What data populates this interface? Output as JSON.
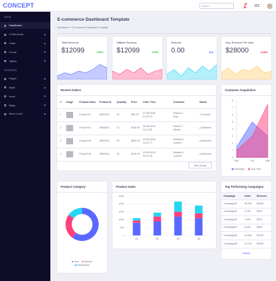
{
  "header": {
    "logo": "CONCEPT",
    "search_placeholder": "Search.."
  },
  "sidebar": {
    "sections": [
      {
        "title": "MENU",
        "items": [
          "Dashboard",
          "UI Elements",
          "Chart",
          "Forms",
          "Tables"
        ]
      },
      {
        "title": "FEATURES",
        "items": [
          "Pages",
          "Apps",
          "Icons",
          "Maps",
          "Menu Level"
        ]
      }
    ]
  },
  "page": {
    "title": "E-commerce Dashboard Template",
    "breadcrumb": [
      "Dashboard",
      "E-Commerce Dashboard Template"
    ]
  },
  "metrics": [
    {
      "label": "Total Revenue",
      "value": "$12099",
      "change": "5.86%",
      "change_color": "#2ec551",
      "type": "area",
      "color": "#5969ff",
      "ylim": [
        0,
        10
      ],
      "trend": [
        2,
        4,
        3,
        5,
        4,
        6,
        9,
        7
      ]
    },
    {
      "label": "Affiliate Revenue",
      "value": "$12099",
      "change": "5.86%",
      "change_color": "#2ec551",
      "type": "area",
      "color": "#ff407b",
      "ylim": [
        0,
        10
      ],
      "trend": [
        5,
        3,
        6,
        4,
        7,
        3,
        5,
        6
      ]
    },
    {
      "label": "Refunds",
      "value": "0.00",
      "change": "N/A",
      "change_color": "#5969ff",
      "type": "area",
      "color": "#25d5f2",
      "ylim": [
        0,
        10
      ],
      "trend": [
        3,
        6,
        2,
        7,
        4,
        8,
        5,
        9
      ]
    },
    {
      "label": "Avg. Revenue Per User",
      "value": "$28000",
      "change": "-2.00%",
      "change_color": "#ef172c",
      "type": "area",
      "color": "#ffc750",
      "ylim": [
        0,
        10
      ],
      "trend": [
        4,
        7,
        3,
        6,
        5,
        8,
        4,
        5
      ]
    }
  ],
  "recent_orders": {
    "title": "Recent Orders",
    "columns": [
      "#",
      "Image",
      "Product Name",
      "Product Id",
      "Quantity",
      "Price",
      "Order Time",
      "Customer",
      "Status"
    ],
    "rows": [
      {
        "number": 1,
        "product_name": "Product #1",
        "product_id": "id000001",
        "quantity": 20,
        "price": "$80.00",
        "order_time": "27-08-2018 01:22:12",
        "customer": "Patricia J. King",
        "status": "InTransit",
        "status_color": "#ffc750"
      },
      {
        "number": 2,
        "product_name": "Product #2",
        "product_id": "id000002",
        "quantity": 12,
        "price": "$180.00",
        "order_time": "25-08-2018 21:12:56",
        "customer": "Rachel J. Wicker",
        "status": "Delivered",
        "status_color": "#2ec551"
      },
      {
        "number": 3,
        "product_name": "Product #3",
        "product_id": "id000003",
        "quantity": 23,
        "price": "$820.00",
        "order_time": "24-08-2018 14:12:77",
        "customer": "Michael K. Ledford",
        "status": "Delivered",
        "status_color": "#2ec551"
      },
      {
        "number": 4,
        "product_name": "Product #4",
        "product_id": "id000004",
        "quantity": 34,
        "price": "$340.00",
        "order_time": "23-08-2018 09:12:35",
        "customer": "Michael K. Ledford",
        "status": "Delivered",
        "status_color": "#2ec551"
      }
    ],
    "button": "View Details"
  },
  "customer_acquisition": {
    "title": "Customer Acquisition",
    "type": "area",
    "categories": [
      "Mon",
      "Tue",
      "Wed"
    ],
    "series": [
      {
        "name": "Returning",
        "color": "#5969ff",
        "values": [
          1.5,
          5,
          3
        ]
      },
      {
        "name": "First Time",
        "color": "#ff407b",
        "values": [
          1,
          3,
          7.5
        ]
      }
    ],
    "ylim": [
      0,
      8
    ],
    "yticks": [
      0,
      1,
      2,
      3,
      4,
      5,
      6,
      7,
      8
    ]
  },
  "product_category": {
    "title": "Product Category",
    "type": "donut",
    "categories": [
      "Man",
      "Woman",
      "Accessories"
    ],
    "values": [
      60,
      25,
      15
    ],
    "colors": [
      "#5969ff",
      "#ff407b",
      "#25d5f2"
    ]
  },
  "product_sales": {
    "title": "Product Sales",
    "type": "stacked-bar",
    "categories": [
      "Q1",
      "Q2",
      "Q3",
      "Q4"
    ],
    "series": [
      {
        "color": "#5969ff",
        "values": [
          800000,
          900000,
          1200000,
          1100000
        ]
      },
      {
        "color": "#ff407b",
        "values": [
          150000,
          300000,
          300000,
          300000
        ]
      },
      {
        "color": "#25d5f2",
        "values": [
          150000,
          250000,
          650000,
          500000
        ]
      }
    ],
    "ylim": [
      0,
      2500000
    ],
    "yticks": [
      {
        "value": 0,
        "label": "0"
      },
      {
        "value": 500000,
        "label": "500k"
      },
      {
        "value": 1000000,
        "label": "1000k"
      },
      {
        "value": 1500000,
        "label": "1500k"
      },
      {
        "value": 2000000,
        "label": "2000k"
      },
      {
        "value": 2500000,
        "label": "2500k"
      }
    ],
    "grid": true
  },
  "campaigns": {
    "title": "Top Performing Campaigns",
    "columns": [
      "Campaign",
      "Visits",
      "Revenue"
    ],
    "rows": [
      [
        "Campaign#1",
        "98,789",
        "$4563"
      ],
      [
        "Campaign#2",
        "2,789",
        "$325"
      ],
      [
        "Campaign#3",
        "1,459",
        "$225"
      ],
      [
        "Campaign#4",
        "5,035",
        "$856"
      ],
      [
        "Campaign#5",
        "10,000",
        "$1000"
      ],
      [
        "Campaign#5",
        "21,129",
        "$4563"
      ]
    ],
    "link": "Details"
  }
}
